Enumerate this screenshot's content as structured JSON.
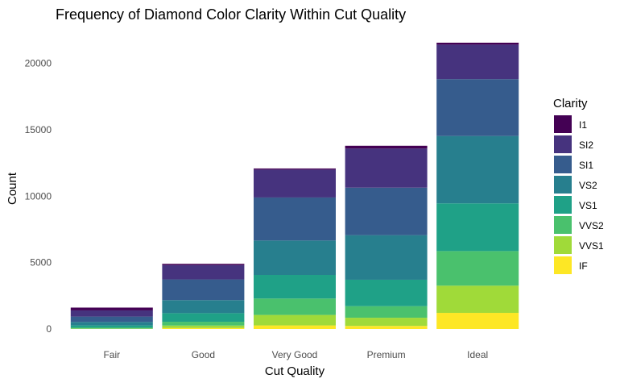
{
  "chart_data": {
    "type": "bar",
    "stacked": true,
    "title": "Frequency of Diamond Color Clarity Within Cut Quality",
    "xlabel": "Cut Quality",
    "ylabel": "Count",
    "ylim": [
      0,
      22500
    ],
    "yticks": [
      0,
      5000,
      10000,
      15000,
      20000
    ],
    "grid": false,
    "legend_position": "right",
    "legend_title": "Clarity",
    "categories": [
      "Fair",
      "Good",
      "Very Good",
      "Premium",
      "Ideal"
    ],
    "series": [
      {
        "name": "I1",
        "color": "#440154",
        "values": [
          210,
          96,
          84,
          205,
          146
        ]
      },
      {
        "name": "SI2",
        "color": "#46337e",
        "values": [
          466,
          1081,
          2100,
          2949,
          2598
        ]
      },
      {
        "name": "SI1",
        "color": "#365c8d",
        "values": [
          408,
          1560,
          3240,
          3575,
          4282
        ]
      },
      {
        "name": "VS2",
        "color": "#277f8e",
        "values": [
          261,
          978,
          2591,
          3357,
          5071
        ]
      },
      {
        "name": "VS1",
        "color": "#1fa187",
        "values": [
          170,
          648,
          1775,
          1989,
          3589
        ]
      },
      {
        "name": "VVS2",
        "color": "#4ac16d",
        "values": [
          69,
          286,
          1235,
          870,
          2606
        ]
      },
      {
        "name": "VVS1",
        "color": "#a0da39",
        "values": [
          17,
          186,
          789,
          616,
          2047
        ]
      },
      {
        "name": "IF",
        "color": "#fde725",
        "values": [
          9,
          71,
          268,
          230,
          1212
        ]
      }
    ]
  }
}
